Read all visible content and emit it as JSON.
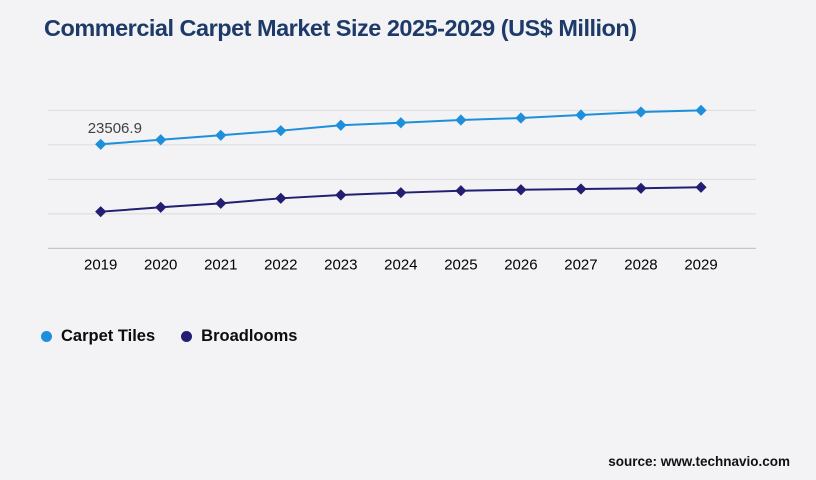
{
  "page": {
    "background": "#f3f3f5"
  },
  "title": {
    "text": "Commercial Carpet Market Size 2025-2029 (US$ Million)",
    "color": "#1d3a69"
  },
  "legend": {
    "items": [
      {
        "label": "Carpet Tiles",
        "color": "#1e90db"
      },
      {
        "label": "Broadlooms",
        "color": "#221f72"
      }
    ]
  },
  "source": {
    "text": "source: www.technavio.com"
  },
  "chart_data": {
    "type": "line",
    "title": "Commercial Carpet Market Size 2025-2029 (US$ Million)",
    "xlabel": "",
    "ylabel": "US$ Million",
    "x": [
      2019,
      2020,
      2021,
      2022,
      2023,
      2024,
      2025,
      2026,
      2027,
      2028,
      2029
    ],
    "series": [
      {
        "name": "Carpet Tiles",
        "color": "#1e90db",
        "marker": "diamond",
        "values": [
          23506.9,
          24540,
          25540,
          26580,
          27800,
          28380,
          28990,
          29440,
          30120,
          30800,
          31180
        ]
      },
      {
        "name": "Broadlooms",
        "color": "#221f72",
        "marker": "diamond",
        "values": [
          8290,
          9280,
          10180,
          11310,
          12060,
          12580,
          13030,
          13250,
          13410,
          13570,
          13800
        ]
      }
    ],
    "annotations": [
      {
        "series": "Carpet Tiles",
        "x": 2019,
        "text": "23506.9"
      }
    ],
    "ylim": [
      0,
      33800
    ],
    "grid": "horizontal-only",
    "grid_color": "#dcdcdf",
    "axis_color": "#c7c7ca",
    "y_axis_labels_visible": false,
    "legend_position": "bottom-left",
    "note": "only the 2019 Carpet Tiles point carries a data label; other values estimated from gridlines"
  }
}
